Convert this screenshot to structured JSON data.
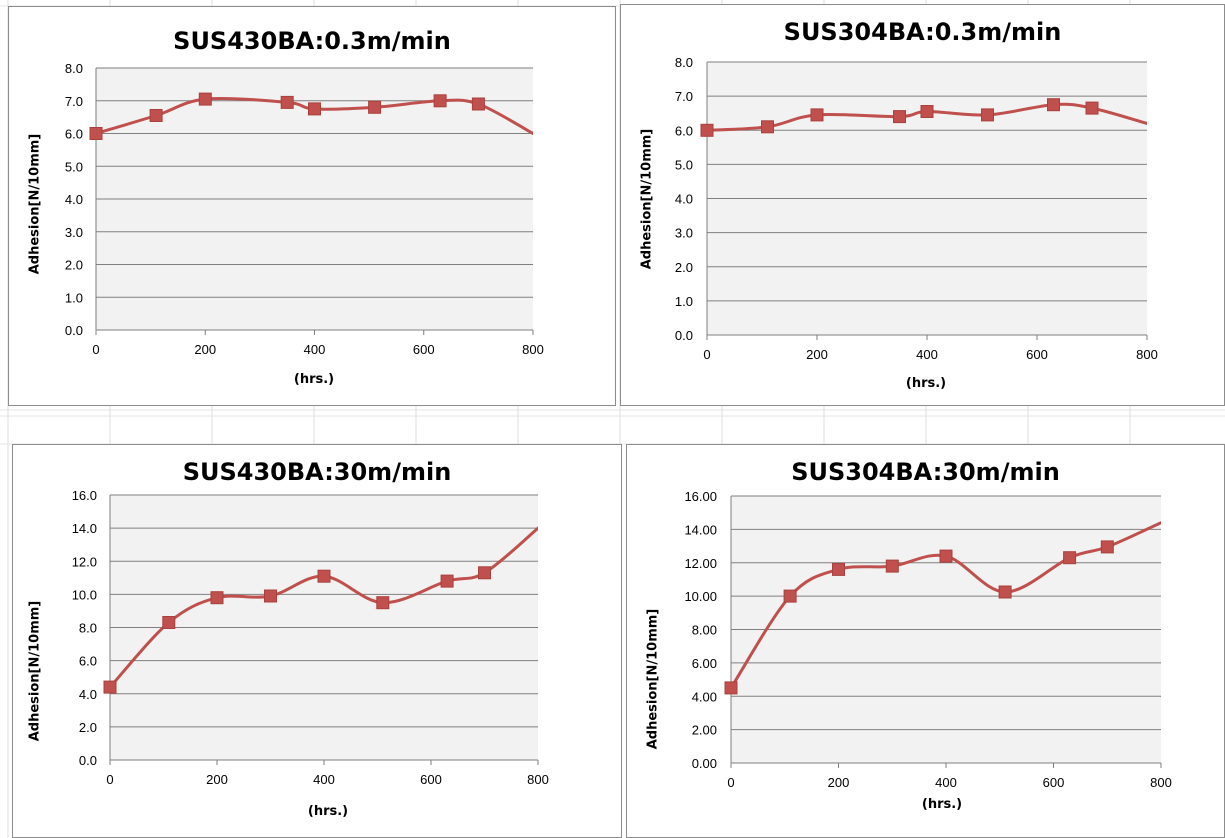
{
  "colors": {
    "series": "#c0504d",
    "plot_bg": "#f2f2f2",
    "gridline": "#7f7f7f",
    "border": "#8c8c8c"
  },
  "chart_data": [
    {
      "type": "line",
      "title": "SUS430BA:0.3m/min",
      "xlabel": "(hrs.)",
      "ylabel": "Adhesion[N/10mm]",
      "xlim": [
        0,
        800
      ],
      "ylim": [
        0,
        8
      ],
      "x_ticks": [
        "0",
        "200",
        "400",
        "600",
        "800"
      ],
      "y_ticks": [
        "0.0",
        "1.0",
        "2.0",
        "3.0",
        "4.0",
        "5.0",
        "6.0",
        "7.0",
        "8.0"
      ],
      "grid": true,
      "marker": "square",
      "smooth": true,
      "series": [
        {
          "x": [
            0,
            110,
            200,
            350,
            400,
            510,
            630,
            700
          ],
          "y": [
            6.0,
            6.55,
            7.05,
            6.95,
            6.75,
            6.8,
            7.0,
            6.9
          ],
          "line_end": {
            "x": 800,
            "y": 6.0
          }
        }
      ]
    },
    {
      "type": "line",
      "title": "SUS304BA:0.3m/min",
      "xlabel": "(hrs.)",
      "ylabel": "Adhesion[N/10mm]",
      "xlim": [
        0,
        800
      ],
      "ylim": [
        0,
        8
      ],
      "x_ticks": [
        "0",
        "200",
        "400",
        "600",
        "800"
      ],
      "y_ticks": [
        "0.0",
        "1.0",
        "2.0",
        "3.0",
        "4.0",
        "5.0",
        "6.0",
        "7.0",
        "8.0"
      ],
      "grid": true,
      "marker": "square",
      "smooth": true,
      "series": [
        {
          "x": [
            0,
            110,
            200,
            350,
            400,
            510,
            630,
            700
          ],
          "y": [
            6.0,
            6.1,
            6.45,
            6.4,
            6.55,
            6.45,
            6.75,
            6.65
          ],
          "line_end": {
            "x": 800,
            "y": 6.2
          }
        }
      ]
    },
    {
      "type": "line",
      "title": "SUS430BA:30m/min",
      "xlabel": "(hrs.)",
      "ylabel": "Adhesion[N/10mm]",
      "xlim": [
        0,
        800
      ],
      "ylim": [
        0,
        16
      ],
      "x_ticks": [
        "0",
        "200",
        "400",
        "600",
        "800"
      ],
      "y_ticks": [
        "0.0",
        "2.0",
        "4.0",
        "6.0",
        "8.0",
        "10.0",
        "12.0",
        "14.0",
        "16.0"
      ],
      "grid": true,
      "marker": "square",
      "smooth": true,
      "series": [
        {
          "x": [
            0,
            110,
            200,
            300,
            400,
            510,
            630,
            700
          ],
          "y": [
            4.4,
            8.3,
            9.8,
            9.9,
            11.1,
            9.5,
            10.8,
            11.3
          ],
          "line_end": {
            "x": 800,
            "y": 14.0
          }
        }
      ]
    },
    {
      "type": "line",
      "title": "SUS304BA:30m/min",
      "xlabel": "(hrs.)",
      "ylabel": "Adhesion[N/10mm]",
      "xlim": [
        0,
        800
      ],
      "ylim": [
        0,
        16
      ],
      "x_ticks": [
        "0",
        "200",
        "400",
        "600",
        "800"
      ],
      "y_ticks": [
        "0.00",
        "2.00",
        "4.00",
        "6.00",
        "8.00",
        "10.00",
        "12.00",
        "14.00",
        "16.00"
      ],
      "grid": true,
      "marker": "square",
      "smooth": true,
      "series": [
        {
          "x": [
            0,
            110,
            200,
            300,
            400,
            510,
            630,
            700
          ],
          "y": [
            4.5,
            10.0,
            11.6,
            11.8,
            12.4,
            10.25,
            12.3,
            12.95
          ],
          "line_end": {
            "x": 800,
            "y": 14.4
          }
        }
      ]
    }
  ]
}
